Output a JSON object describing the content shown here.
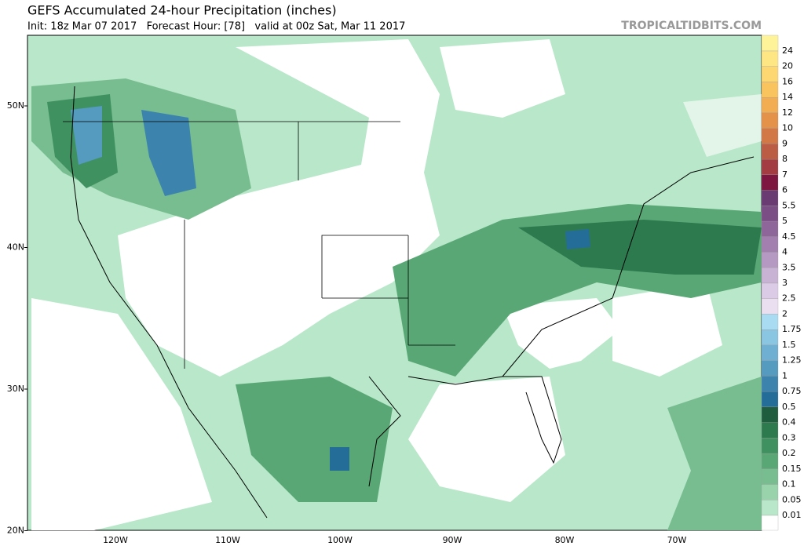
{
  "header": {
    "title": "GEFS Accumulated 24-hour Precipitation (inches)",
    "subtitle": "Init: 18z Mar 07 2017   Forecast Hour: [78]   valid at 00z Sat, Mar 11 2017",
    "site": "TROPICALTIDBITS.COM"
  },
  "map": {
    "lat_labels": [
      "50N",
      "40N",
      "30N",
      "20N"
    ],
    "lon_labels": [
      "120W",
      "110W",
      "100W",
      "90W",
      "80W",
      "70W"
    ]
  },
  "colorbar": [
    {
      "label": "24",
      "color": "#fff39a"
    },
    {
      "label": "20",
      "color": "#ffe684"
    },
    {
      "label": "16",
      "color": "#fdd772"
    },
    {
      "label": "14",
      "color": "#f9c45e"
    },
    {
      "label": "12",
      "color": "#f2ac52"
    },
    {
      "label": "10",
      "color": "#e4914a"
    },
    {
      "label": "9",
      "color": "#d27847"
    },
    {
      "label": "8",
      "color": "#bb5c45"
    },
    {
      "label": "7",
      "color": "#a23b42"
    },
    {
      "label": "6",
      "color": "#7e1440"
    },
    {
      "label": "5.5",
      "color": "#6a3a72"
    },
    {
      "label": "5",
      "color": "#7b4e86"
    },
    {
      "label": "4.5",
      "color": "#8e6699"
    },
    {
      "label": "4",
      "color": "#a27fae"
    },
    {
      "label": "3.5",
      "color": "#b699c2"
    },
    {
      "label": "3",
      "color": "#c9b3d5"
    },
    {
      "label": "2.5",
      "color": "#dccbe6"
    },
    {
      "label": "2",
      "color": "#e9dff1"
    },
    {
      "label": "1.75",
      "color": "#a9dcf3"
    },
    {
      "label": "1.5",
      "color": "#8ac5e2"
    },
    {
      "label": "1.25",
      "color": "#6fb0d2"
    },
    {
      "label": "1",
      "color": "#559abf"
    },
    {
      "label": "0.75",
      "color": "#3c84ad"
    },
    {
      "label": "0.5",
      "color": "#256d99"
    },
    {
      "label": "0.4",
      "color": "#1e5e3e"
    },
    {
      "label": "0.3",
      "color": "#2e7a4f"
    },
    {
      "label": "0.2",
      "color": "#3f9160"
    },
    {
      "label": "0.15",
      "color": "#5aa776"
    },
    {
      "label": "0.1",
      "color": "#78bd90"
    },
    {
      "label": "0.05",
      "color": "#98d3ab"
    },
    {
      "label": "0.01",
      "color": "#b8e7c9"
    }
  ]
}
